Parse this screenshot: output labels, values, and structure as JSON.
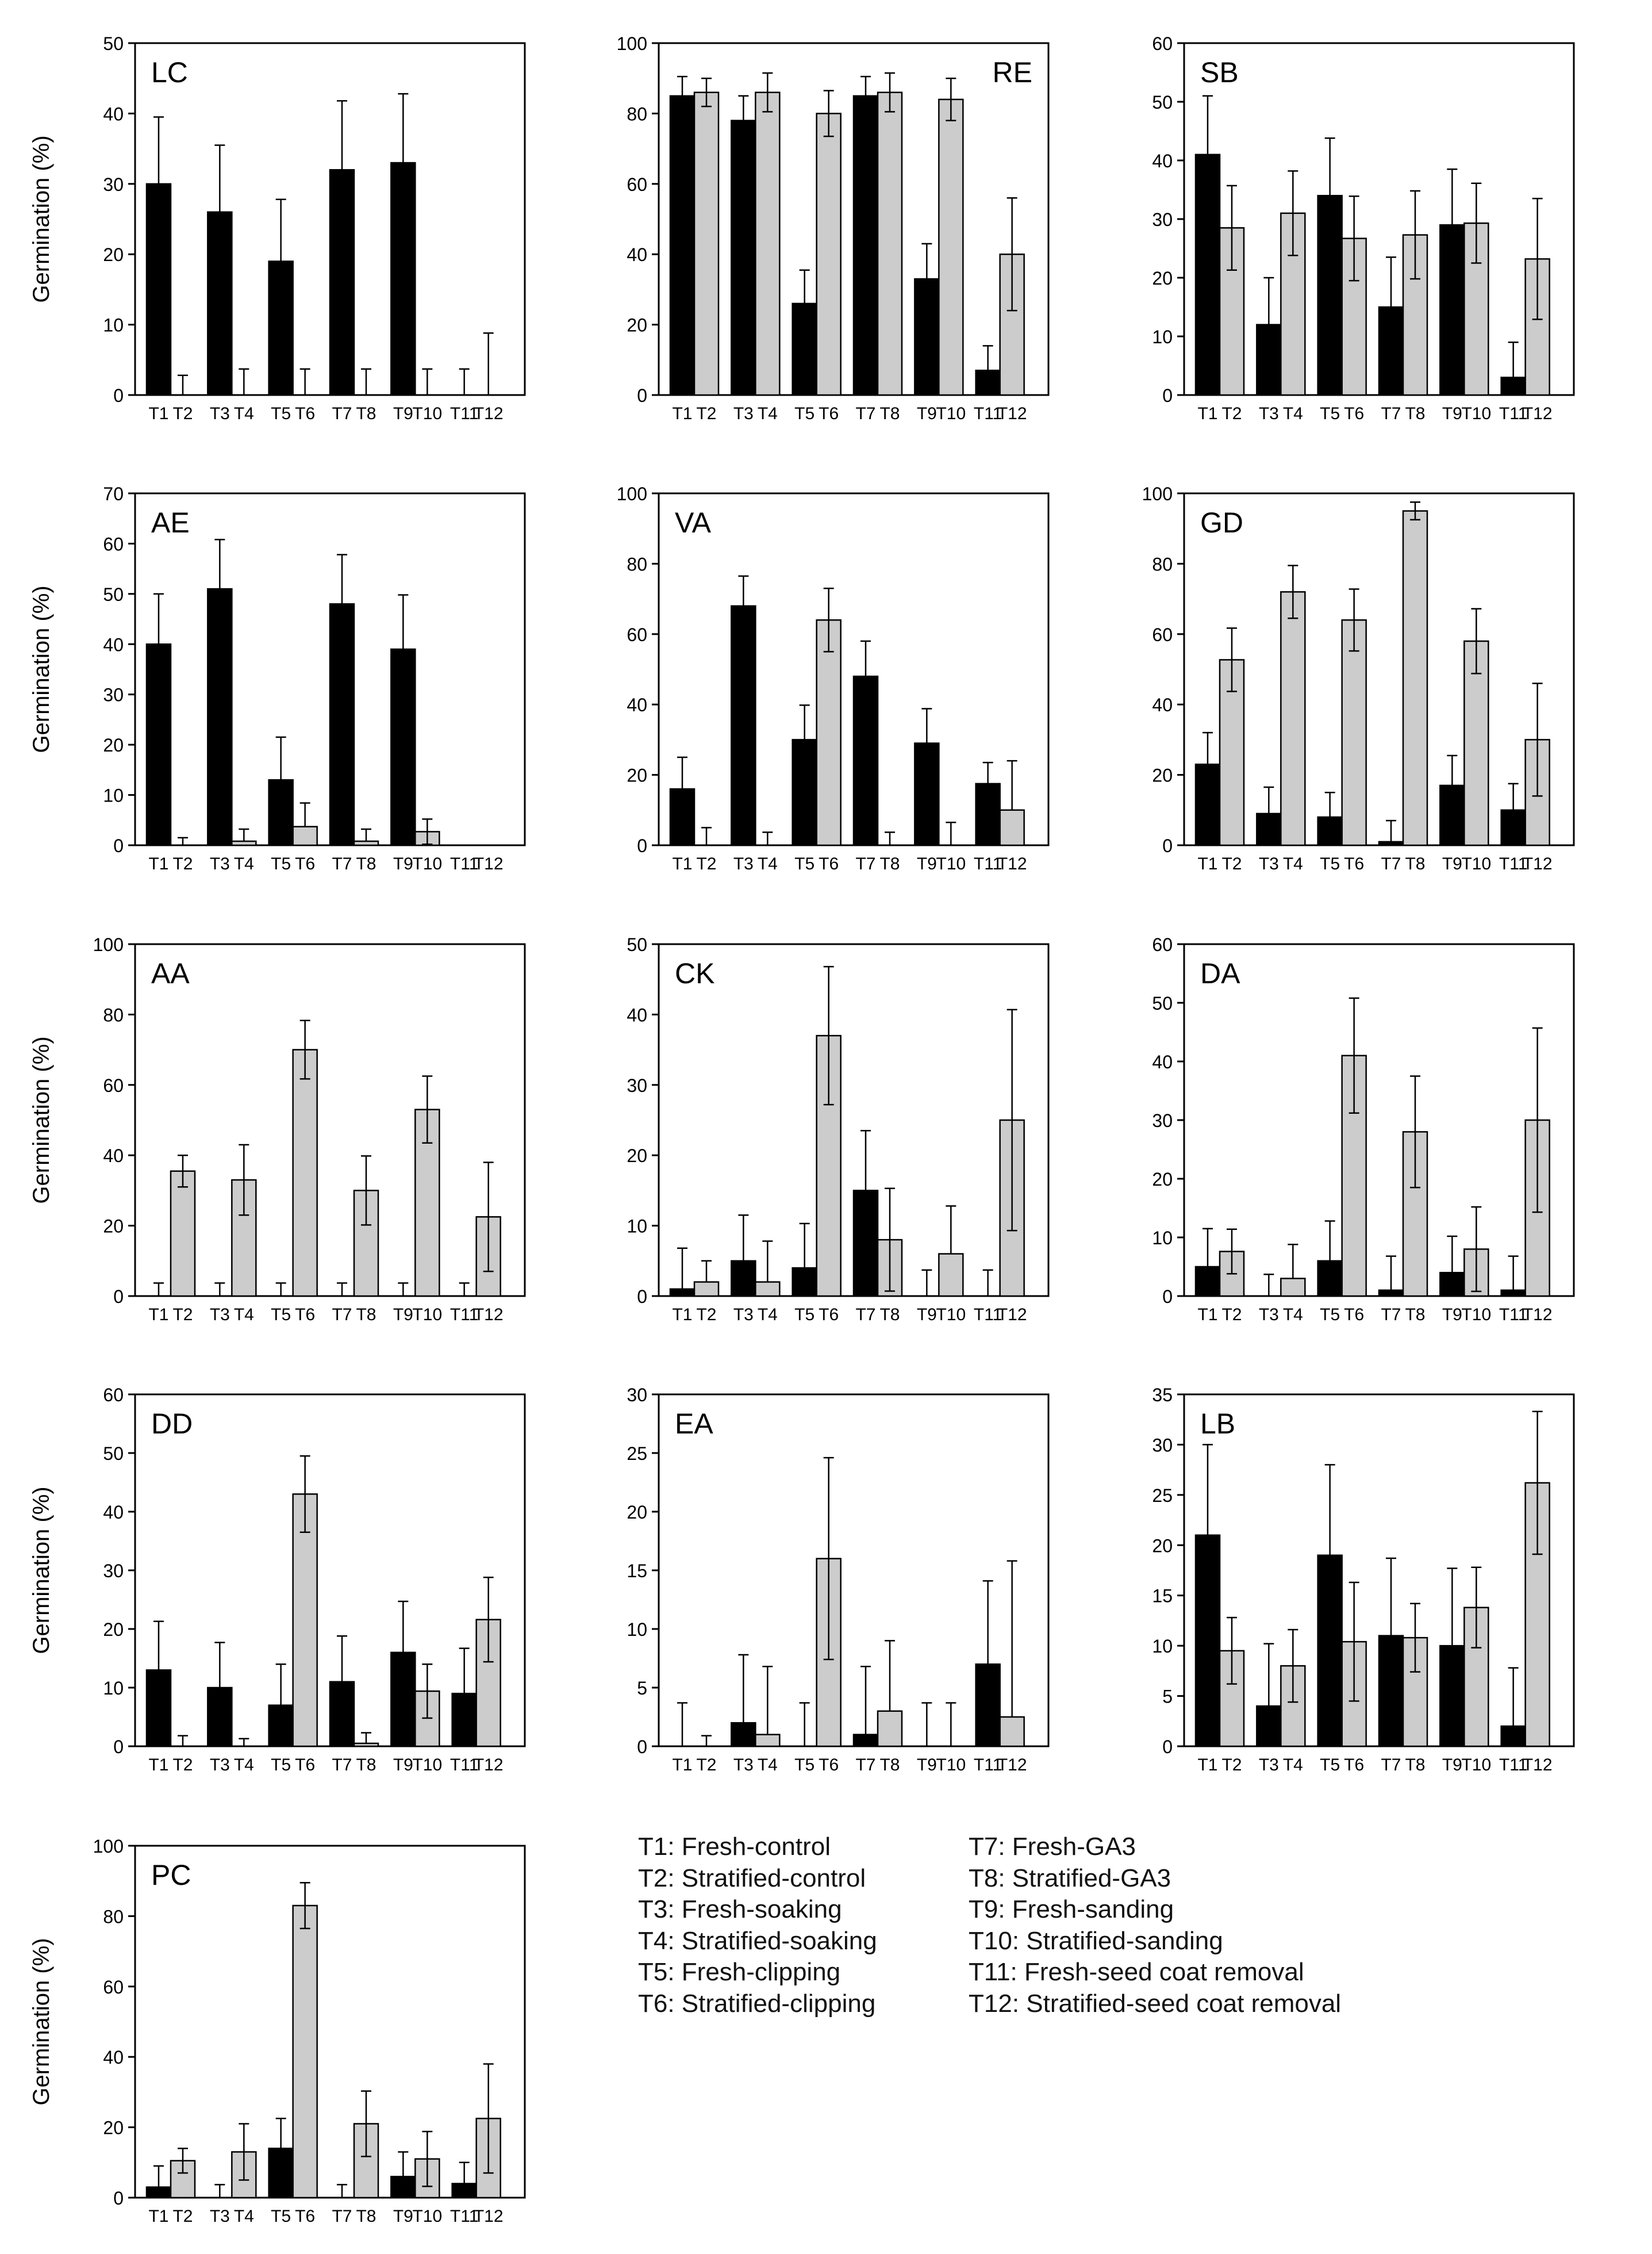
{
  "chart_data": {
    "type": "bar",
    "ylabel": "Germination (%)",
    "categories": [
      "T1",
      "T2",
      "T3",
      "T4",
      "T5",
      "T6",
      "T7",
      "T8",
      "T9",
      "T10",
      "T11",
      "T12"
    ],
    "series_colors": {
      "fresh": "#000000",
      "stratified": "#cccccc"
    },
    "panels": [
      {
        "title": "LC",
        "label_position": "top-left",
        "ylim": [
          0,
          50
        ],
        "yticks": [
          "0",
          "10",
          "20",
          "30",
          "40",
          "50"
        ],
        "values": [
          30,
          0,
          26,
          0,
          19,
          0,
          32,
          0,
          33,
          0,
          0,
          0
        ],
        "errors": [
          9.5,
          2.8,
          9.5,
          3.7,
          8.8,
          3.7,
          9.8,
          3.7,
          9.8,
          3.7,
          3.7,
          8.8
        ]
      },
      {
        "title": "RE",
        "label_position": "top-right",
        "ylim": [
          0,
          100
        ],
        "yticks": [
          "0",
          "20",
          "40",
          "60",
          "80",
          "100"
        ],
        "values": [
          85,
          86,
          78,
          86,
          26,
          80,
          85,
          86,
          33,
          84,
          7,
          40
        ],
        "errors": [
          5.5,
          4,
          7,
          5.5,
          9.5,
          6.5,
          5.5,
          5.5,
          10,
          6,
          7,
          16
        ]
      },
      {
        "title": "SB",
        "label_position": "top-left",
        "ylim": [
          0,
          60
        ],
        "yticks": [
          "0",
          "10",
          "20",
          "30",
          "40",
          "50",
          "60"
        ],
        "values": [
          41,
          28.5,
          12,
          31,
          34,
          26.7,
          15,
          27.3,
          29,
          29.3,
          3,
          23.2
        ],
        "errors": [
          10,
          7.2,
          8,
          7.2,
          9.8,
          7.2,
          8.5,
          7.5,
          9.5,
          6.8,
          6,
          10.3
        ]
      },
      {
        "title": "AE",
        "label_position": "top-left",
        "ylim": [
          0,
          70
        ],
        "yticks": [
          "0",
          "10",
          "20",
          "30",
          "40",
          "50",
          "60",
          "70"
        ],
        "values": [
          40,
          0,
          51,
          0.8,
          13,
          3.7,
          48,
          0.8,
          39,
          2.7,
          0,
          0
        ],
        "errors": [
          10,
          1.5,
          9.8,
          2.4,
          8.5,
          4.7,
          9.8,
          2.4,
          10.8,
          2.5,
          0,
          0
        ]
      },
      {
        "title": "VA",
        "label_position": "top-left",
        "ylim": [
          0,
          100
        ],
        "yticks": [
          "0",
          "20",
          "40",
          "60",
          "80",
          "100"
        ],
        "values": [
          16,
          0,
          68,
          0,
          30,
          64,
          48,
          0,
          29,
          0,
          17.5,
          10
        ],
        "errors": [
          9,
          5,
          8.5,
          3.7,
          9.8,
          9,
          10,
          3.7,
          9.8,
          6.5,
          6,
          14
        ]
      },
      {
        "title": "GD",
        "label_position": "top-left",
        "ylim": [
          0,
          100
        ],
        "yticks": [
          "0",
          "20",
          "40",
          "60",
          "80",
          "100"
        ],
        "values": [
          23,
          52.7,
          9,
          72,
          8,
          64,
          1,
          95,
          17,
          58,
          10,
          30
        ],
        "errors": [
          9,
          9,
          7.5,
          7.5,
          7,
          8.8,
          6,
          2.5,
          8.5,
          9.2,
          7.5,
          16
        ]
      },
      {
        "title": "AA",
        "label_position": "top-left",
        "ylim": [
          0,
          100
        ],
        "yticks": [
          "0",
          "20",
          "40",
          "60",
          "80",
          "100"
        ],
        "values": [
          0,
          35.5,
          0,
          33,
          0,
          70,
          0,
          30,
          0,
          53,
          0,
          22.5
        ],
        "errors": [
          3.7,
          4.5,
          3.7,
          10,
          3.7,
          8.3,
          3.7,
          9.8,
          3.7,
          9.5,
          3.7,
          15.5
        ]
      },
      {
        "title": "CK",
        "label_position": "top-left",
        "ylim": [
          0,
          50
        ],
        "yticks": [
          "0",
          "10",
          "20",
          "30",
          "40",
          "50"
        ],
        "values": [
          1,
          2,
          5,
          2,
          4,
          37,
          15,
          8,
          0,
          6,
          0,
          25
        ],
        "errors": [
          5.8,
          3,
          6.5,
          5.8,
          6.3,
          9.8,
          8.5,
          7.3,
          3.7,
          6.8,
          3.7,
          15.7
        ]
      },
      {
        "title": "DA",
        "label_position": "top-left",
        "ylim": [
          0,
          60
        ],
        "yticks": [
          "0",
          "10",
          "20",
          "30",
          "40",
          "50",
          "60"
        ],
        "values": [
          5,
          7.6,
          0,
          3,
          6,
          41,
          1,
          28,
          4,
          8,
          1,
          30
        ],
        "errors": [
          6.5,
          3.8,
          3.7,
          5.8,
          6.8,
          9.8,
          5.8,
          9.5,
          6.2,
          7.2,
          5.8,
          15.7
        ]
      },
      {
        "title": "DD",
        "label_position": "top-left",
        "ylim": [
          0,
          60
        ],
        "yticks": [
          "0",
          "10",
          "20",
          "30",
          "40",
          "50",
          "60"
        ],
        "values": [
          13,
          0,
          10,
          0,
          7,
          43,
          11,
          0.5,
          16,
          9.4,
          9,
          21.6
        ],
        "errors": [
          8.3,
          1.8,
          7.7,
          1.3,
          7,
          6.5,
          7.8,
          1.8,
          8.7,
          4.6,
          7.7,
          7.2
        ]
      },
      {
        "title": "EA",
        "label_position": "top-left",
        "ylim": [
          0,
          30
        ],
        "yticks": [
          "0",
          "5",
          "10",
          "15",
          "20",
          "25",
          "30"
        ],
        "values": [
          0,
          0,
          2,
          1,
          0,
          16,
          1,
          3,
          0,
          0,
          7,
          2.5
        ],
        "errors": [
          3.7,
          0.9,
          5.8,
          5.8,
          3.7,
          8.6,
          5.8,
          6,
          3.7,
          3.7,
          7.1,
          13.3
        ]
      },
      {
        "title": "LB",
        "label_position": "top-left",
        "ylim": [
          0,
          35
        ],
        "yticks": [
          "0",
          "5",
          "10",
          "15",
          "20",
          "25",
          "30",
          "35"
        ],
        "values": [
          21,
          9.5,
          4,
          8,
          19,
          10.4,
          11,
          10.8,
          10,
          13.8,
          2,
          26.2
        ],
        "errors": [
          9,
          3.3,
          6.2,
          3.6,
          9,
          5.9,
          7.7,
          3.4,
          7.7,
          4,
          5.8,
          7.1
        ]
      },
      {
        "title": "PC",
        "label_position": "top-left",
        "ylim": [
          0,
          100
        ],
        "yticks": [
          "0",
          "20",
          "40",
          "60",
          "80",
          "100"
        ],
        "values": [
          3,
          10.5,
          0,
          13,
          14,
          83,
          0,
          21,
          6,
          11,
          4,
          22.5
        ],
        "errors": [
          6,
          3.5,
          3.7,
          8,
          8.5,
          6.5,
          3.7,
          9.3,
          7,
          7.8,
          6,
          15.5
        ]
      }
    ]
  },
  "legend": {
    "left": [
      "T1: Fresh-control",
      "T2: Stratified-control",
      "T3: Fresh-soaking",
      "T4: Stratified-soaking",
      "T5: Fresh-clipping",
      "T6: Stratified-clipping"
    ],
    "right": [
      "T7: Fresh-GA3",
      "T8: Stratified-GA3",
      "T9: Fresh-sanding",
      "T10: Stratified-sanding",
      "T11: Fresh-seed coat removal",
      "T12: Stratified-seed coat removal"
    ]
  }
}
